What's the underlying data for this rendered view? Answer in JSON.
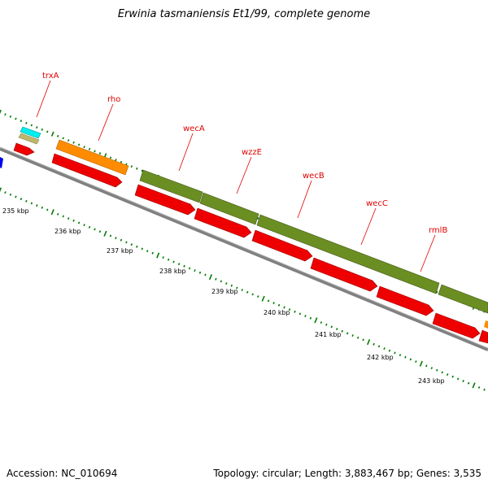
{
  "title": "Erwinia tasmaniensis Et1/99, complete genome",
  "footer": {
    "accession_label": "Accession: NC_010694",
    "summary": "Topology: circular; Length: 3,883,467 bp; Genes: 3,535"
  },
  "colors": {
    "cds": "#ee0000",
    "gene_feature": "#6b8e23",
    "orange_feature": "#ff8c00",
    "cyan_feature": "#00eeee",
    "tan_feature": "#bdb76b",
    "blue_feature": "#0000ee",
    "backbone": "#808080",
    "tick_green": "#007a00",
    "label_red": "#e00000"
  },
  "scale_labels": [
    "235 kbp",
    "236 kbp",
    "237 kbp",
    "238 kbp",
    "239 kbp",
    "240 kbp",
    "241 kbp",
    "242 kbp",
    "243 kbp"
  ],
  "gene_labels": [
    {
      "id": "trxA",
      "text": "trxA"
    },
    {
      "id": "rho",
      "text": "rho"
    },
    {
      "id": "wecA",
      "text": "wecA"
    },
    {
      "id": "wzzE",
      "text": "wzzE"
    },
    {
      "id": "wecB",
      "text": "wecB"
    },
    {
      "id": "wecC",
      "text": "wecC"
    },
    {
      "id": "rmlB",
      "text": "rmlB"
    }
  ]
}
